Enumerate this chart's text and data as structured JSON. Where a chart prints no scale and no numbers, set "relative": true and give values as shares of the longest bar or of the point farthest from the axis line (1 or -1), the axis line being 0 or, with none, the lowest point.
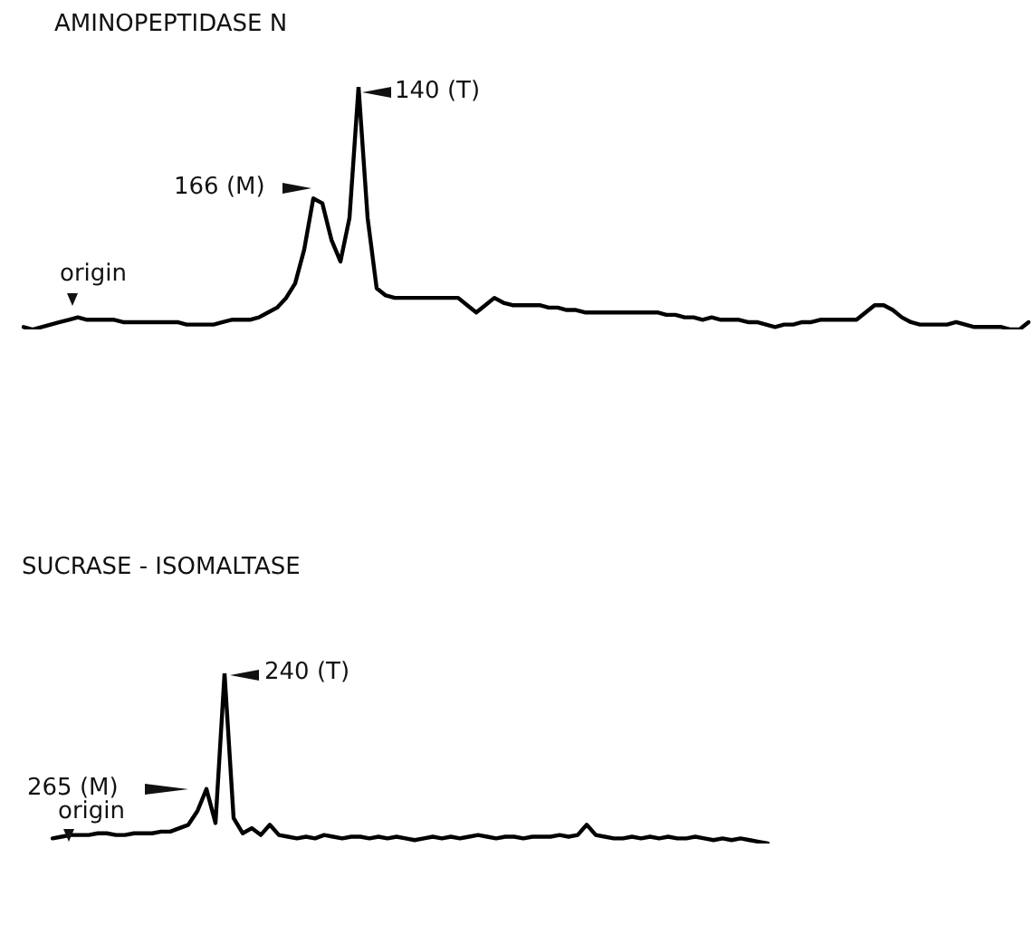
{
  "chart_data": [
    {
      "type": "line",
      "title": "AMINOPEPTIDASE  N",
      "relative": true,
      "color": "#000000",
      "marker": "none",
      "annotations": [
        "166 (M)",
        "140 (T)",
        "origin"
      ],
      "categories": [
        null,
        null,
        null,
        null,
        null,
        null,
        null,
        null,
        null,
        null,
        null,
        null,
        null,
        null,
        null,
        null,
        null,
        null,
        null,
        null,
        null,
        null,
        null,
        null,
        null,
        null,
        null,
        null,
        null,
        null,
        null,
        null,
        null,
        null,
        null,
        null,
        null,
        null,
        null,
        null,
        null,
        null,
        null,
        null,
        null,
        null,
        null,
        null,
        null,
        null,
        null,
        null,
        null,
        null,
        null,
        null,
        null,
        null,
        null,
        null,
        null,
        null,
        null,
        null,
        null,
        null,
        null,
        null,
        null,
        null,
        null,
        null,
        null,
        null,
        null,
        null,
        null,
        null,
        null,
        null,
        null,
        null,
        null,
        null,
        null,
        null,
        null,
        null,
        null,
        null,
        null,
        null,
        null,
        null,
        null,
        null,
        null,
        null,
        null,
        null,
        null,
        null,
        null,
        null,
        null,
        null,
        null,
        null,
        null,
        null,
        null,
        null
      ],
      "values": [
        0.01,
        0,
        0.01,
        0.02,
        0.03,
        0.04,
        0.05,
        0.04,
        0.04,
        0.04,
        0.04,
        0.03,
        0.03,
        0.03,
        0.03,
        0.03,
        0.03,
        0.03,
        0.02,
        0.02,
        0.02,
        0.02,
        0.03,
        0.04,
        0.04,
        0.04,
        0.05,
        0.07,
        0.09,
        0.13,
        0.19,
        0.33,
        0.54,
        0.52,
        0.37,
        0.28,
        0.46,
        1,
        0.46,
        0.17,
        0.14,
        0.13,
        0.13,
        0.13,
        0.13,
        0.13,
        0.13,
        0.13,
        0.13,
        0.1,
        0.07,
        0.1,
        0.13,
        0.11,
        0.1,
        0.1,
        0.1,
        0.1,
        0.09,
        0.09,
        0.08,
        0.08,
        0.07,
        0.07,
        0.07,
        0.07,
        0.07,
        0.07,
        0.07,
        0.07,
        0.07,
        0.06,
        0.06,
        0.05,
        0.05,
        0.04,
        0.05,
        0.04,
        0.04,
        0.04,
        0.03,
        0.03,
        0.02,
        0.01,
        0.02,
        0.02,
        0.03,
        0.03,
        0.04,
        0.04,
        0.04,
        0.04,
        0.04,
        0.07,
        0.1,
        0.1,
        0.08,
        0.05,
        0.03,
        0.02,
        0.02,
        0.02,
        0.02,
        0.03,
        0.02,
        0.01,
        0.01,
        0.01,
        0.01,
        0,
        0,
        0.03
      ]
    },
    {
      "type": "line",
      "title": "SUCRASE - ISOMALTASE",
      "relative": true,
      "color": "#000000",
      "marker": "none",
      "annotations": [
        "265 (M)",
        "240 (T)",
        "origin"
      ],
      "categories": [
        null,
        null,
        null,
        null,
        null,
        null,
        null,
        null,
        null,
        null,
        null,
        null,
        null,
        null,
        null,
        null,
        null,
        null,
        null,
        null,
        null,
        null,
        null,
        null,
        null,
        null,
        null,
        null,
        null,
        null,
        null,
        null,
        null,
        null,
        null,
        null,
        null,
        null,
        null,
        null,
        null,
        null,
        null,
        null,
        null,
        null,
        null,
        null,
        null,
        null,
        null,
        null,
        null,
        null,
        null,
        null,
        null,
        null,
        null,
        null,
        null,
        null,
        null,
        null,
        null,
        null,
        null,
        null,
        null,
        null,
        null,
        null,
        null,
        null,
        null,
        null,
        null,
        null,
        null,
        null
      ],
      "values": [
        0.03,
        0.04,
        0.05,
        0.05,
        0.05,
        0.06,
        0.06,
        0.05,
        0.05,
        0.06,
        0.06,
        0.06,
        0.07,
        0.07,
        0.09,
        0.11,
        0.19,
        0.32,
        0.12,
        1,
        0.15,
        0.06,
        0.09,
        0.05,
        0.11,
        0.05,
        0.04,
        0.03,
        0.04,
        0.03,
        0.05,
        0.04,
        0.03,
        0.04,
        0.04,
        0.03,
        0.04,
        0.03,
        0.04,
        0.03,
        0.02,
        0.03,
        0.04,
        0.03,
        0.04,
        0.03,
        0.04,
        0.05,
        0.04,
        0.03,
        0.04,
        0.04,
        0.03,
        0.04,
        0.04,
        0.04,
        0.05,
        0.04,
        0.05,
        0.11,
        0.05,
        0.04,
        0.03,
        0.03,
        0.04,
        0.03,
        0.04,
        0.03,
        0.04,
        0.03,
        0.03,
        0.04,
        0.03,
        0.02,
        0.03,
        0.02,
        0.03,
        0.02,
        0.01,
        0
      ]
    }
  ]
}
